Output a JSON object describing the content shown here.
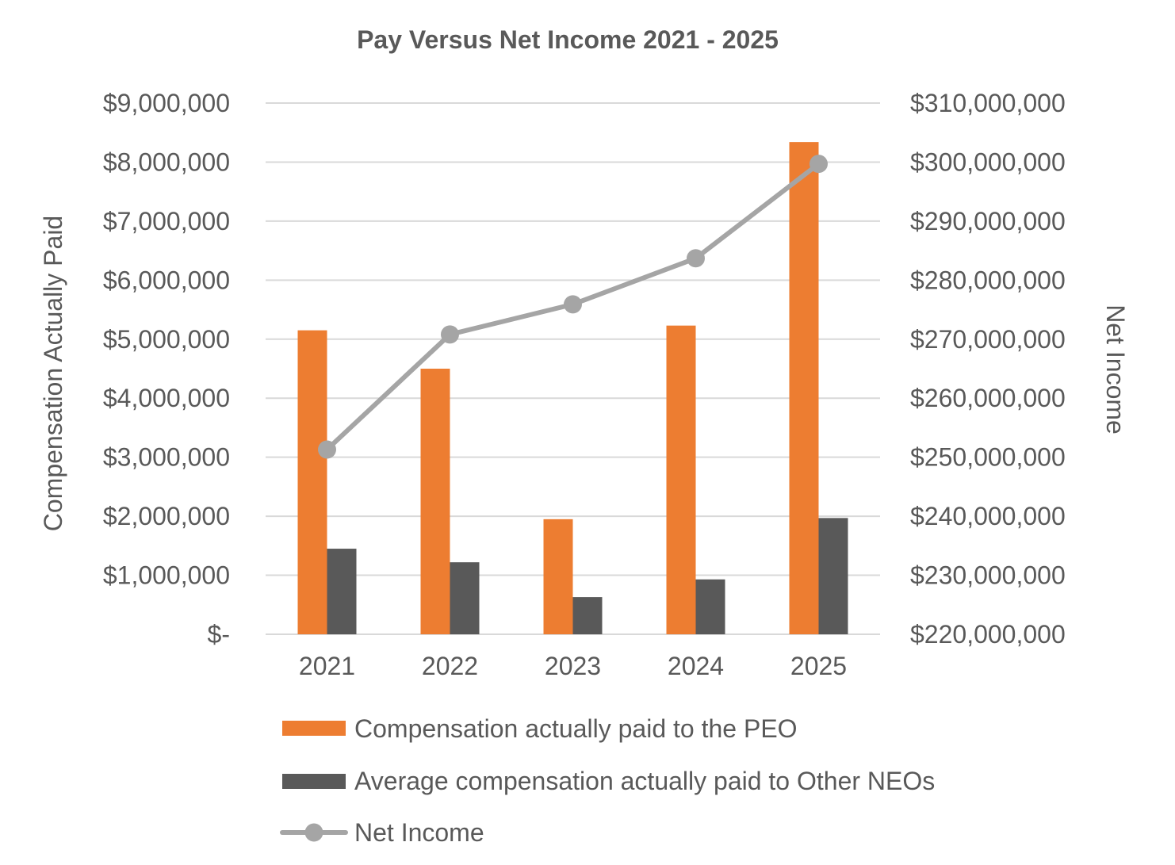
{
  "chart_data": {
    "type": "bar",
    "title": "Pay Versus Net Income 2021 - 2025",
    "categories": [
      "2021",
      "2022",
      "2023",
      "2024",
      "2025"
    ],
    "series": [
      {
        "name": "Compensation actually paid to the PEO",
        "type": "bar",
        "axis": "left",
        "color": "#ED7D31",
        "values": [
          5150000,
          4500000,
          1950000,
          5230000,
          8340000
        ]
      },
      {
        "name": "Average compensation actually paid to Other NEOs",
        "type": "bar",
        "axis": "left",
        "color": "#595959",
        "values": [
          1450000,
          1220000,
          630000,
          930000,
          1970000
        ]
      },
      {
        "name": "Net Income",
        "type": "line",
        "axis": "right",
        "marker": "circle",
        "color": "#A5A5A5",
        "values": [
          251300000,
          270800000,
          275900000,
          283700000,
          299700000
        ]
      }
    ],
    "ylabel": "Compensation Actually Paid",
    "ylim": [
      0,
      9000000
    ],
    "yticks": [
      {
        "value": 0,
        "label": "$-"
      },
      {
        "value": 1000000,
        "label": "$1,000,000"
      },
      {
        "value": 2000000,
        "label": "$2,000,000"
      },
      {
        "value": 3000000,
        "label": "$3,000,000"
      },
      {
        "value": 4000000,
        "label": "$4,000,000"
      },
      {
        "value": 5000000,
        "label": "$5,000,000"
      },
      {
        "value": 6000000,
        "label": "$6,000,000"
      },
      {
        "value": 7000000,
        "label": "$7,000,000"
      },
      {
        "value": 8000000,
        "label": "$8,000,000"
      },
      {
        "value": 9000000,
        "label": "$9,000,000"
      }
    ],
    "y2label": "Net Income",
    "y2lim": [
      220000000,
      310000000
    ],
    "y2ticks": [
      {
        "value": 220000000,
        "label": "$220,000,000"
      },
      {
        "value": 230000000,
        "label": "$230,000,000"
      },
      {
        "value": 240000000,
        "label": "$240,000,000"
      },
      {
        "value": 250000000,
        "label": "$250,000,000"
      },
      {
        "value": 260000000,
        "label": "$260,000,000"
      },
      {
        "value": 270000000,
        "label": "$270,000,000"
      },
      {
        "value": 280000000,
        "label": "$280,000,000"
      },
      {
        "value": 290000000,
        "label": "$290,000,000"
      },
      {
        "value": 300000000,
        "label": "$300,000,000"
      },
      {
        "value": 310000000,
        "label": "$310,000,000"
      }
    ],
    "grid": true,
    "legend": "bottom"
  }
}
